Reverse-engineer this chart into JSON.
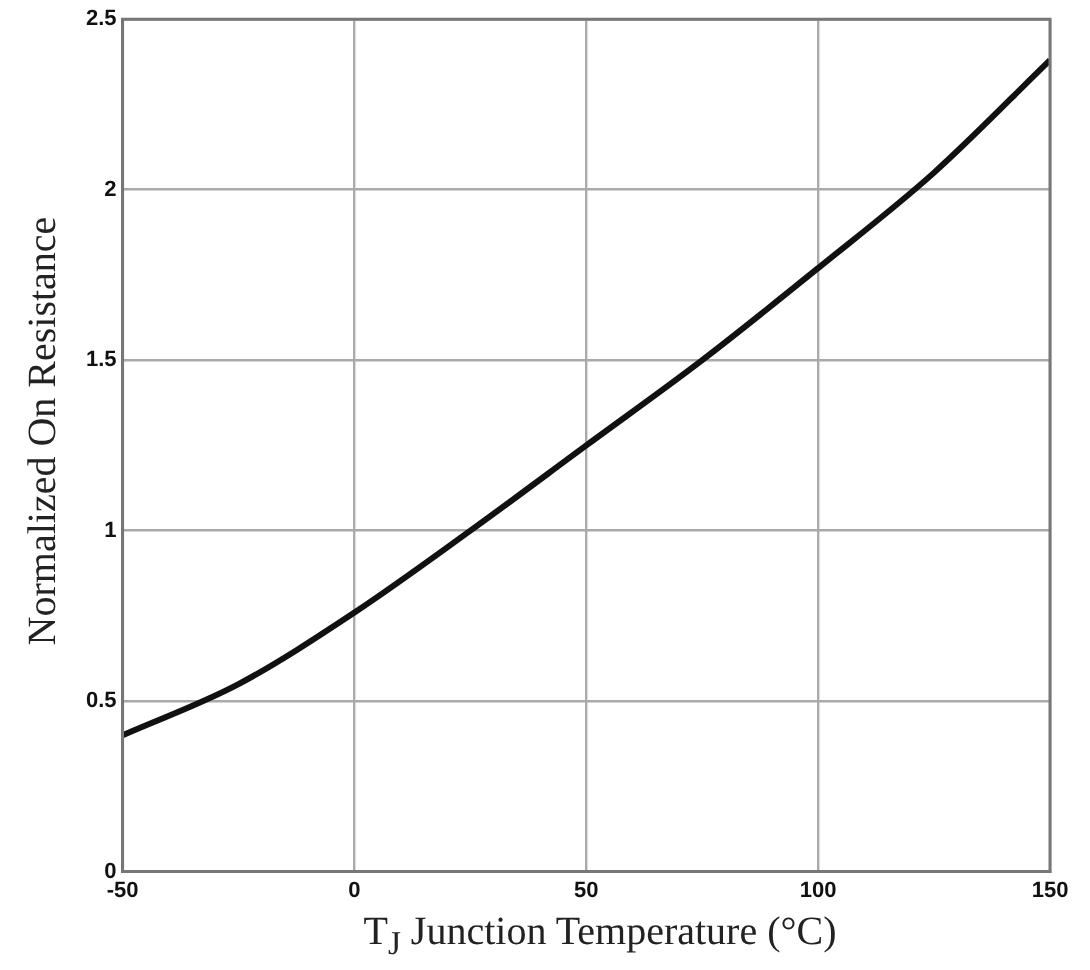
{
  "chart_data": {
    "type": "line",
    "xlabel": "T$_{J}$  Junction Temperature (°C)",
    "ylabel": "Normalized On Resistance",
    "x": [
      -50,
      -25,
      0,
      25,
      50,
      75,
      100,
      125,
      150
    ],
    "series": [
      {
        "color": "#111111",
        "values": [
          0.4,
          0.55,
          0.76,
          1.0,
          1.25,
          1.5,
          1.77,
          2.05,
          2.38
        ]
      }
    ],
    "xlim": [
      -50,
      150
    ],
    "xticks": [
      -50,
      0,
      50,
      100,
      150
    ],
    "ylim": [
      0,
      2.5
    ],
    "yticks": [
      0,
      0.5,
      1,
      1.5,
      2,
      2.5
    ],
    "grid": true,
    "legend": false,
    "marker": "none",
    "line_style": "solid"
  }
}
